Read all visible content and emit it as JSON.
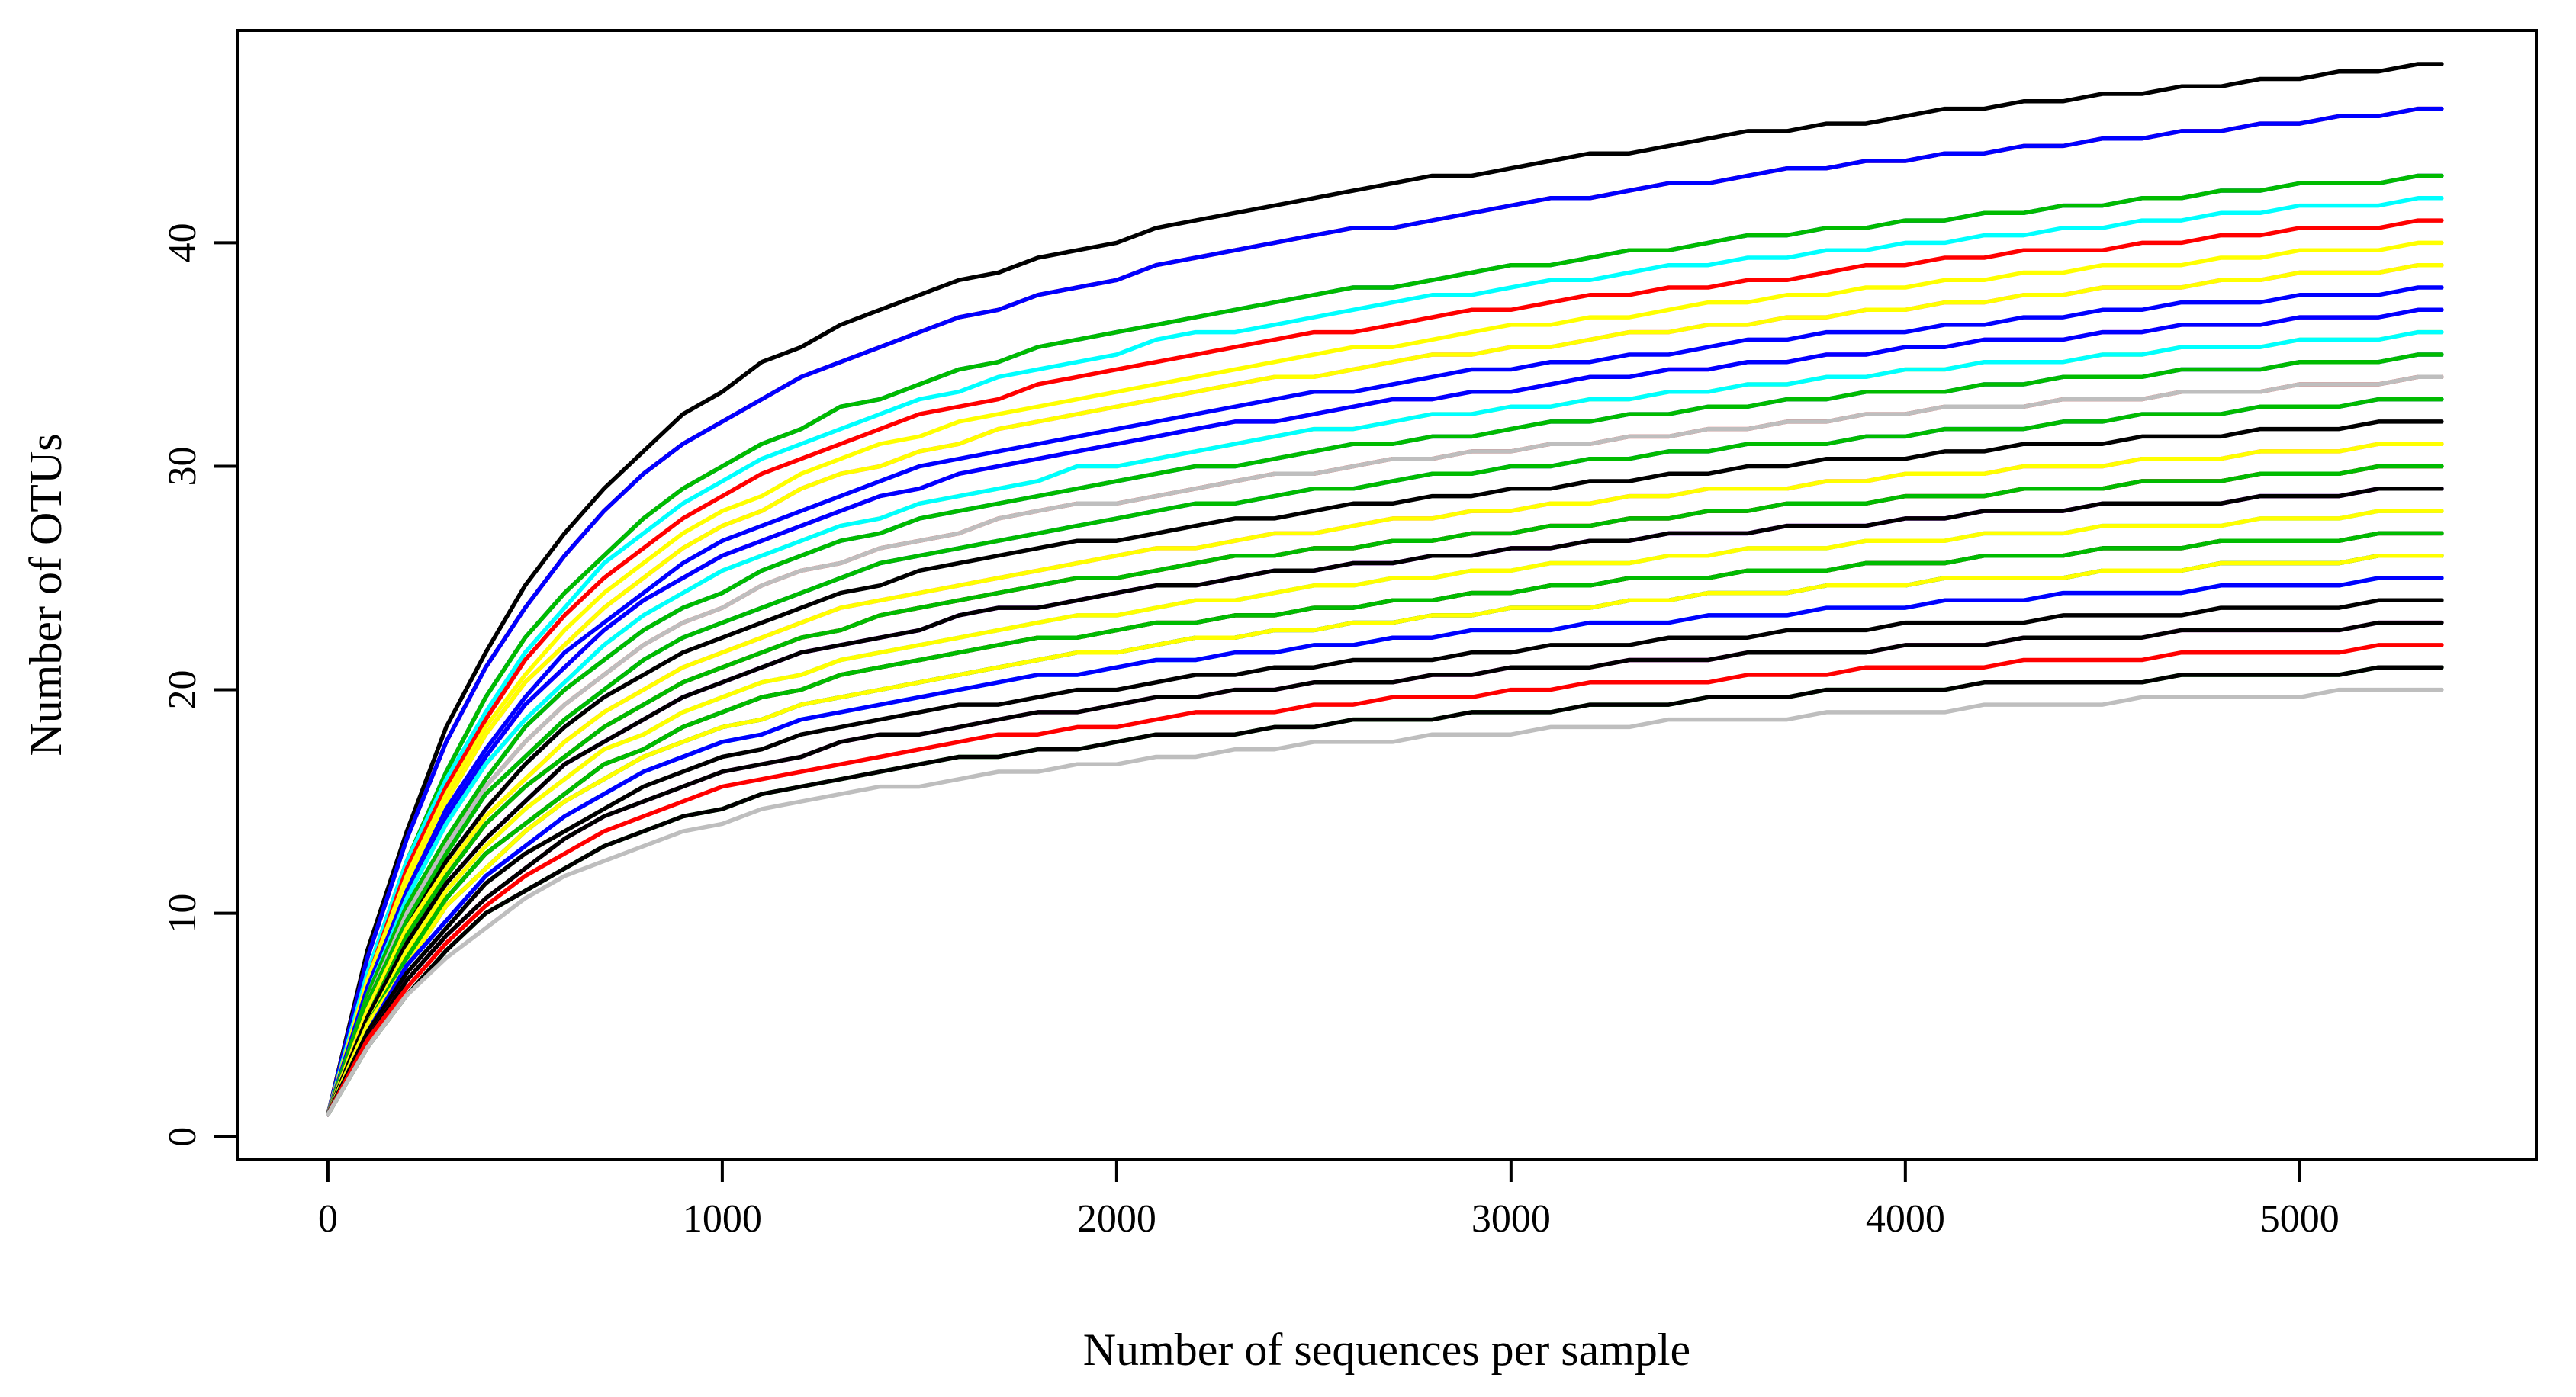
{
  "chart_data": {
    "type": "line",
    "title": "",
    "xlabel": "Number of sequences per sample",
    "ylabel": "Number of OTUs",
    "xlim": [
      -230,
      5600
    ],
    "ylim": [
      -1,
      49.5
    ],
    "x_ticks": [
      0,
      1000,
      2000,
      3000,
      4000,
      5000
    ],
    "y_ticks": [
      0,
      10,
      20,
      30,
      40
    ],
    "grid": false,
    "legend": "none",
    "x_max": 5360,
    "series": [
      {
        "color": "#000000",
        "final": 48.0
      },
      {
        "color": "#ff0000",
        "final": 46.0
      },
      {
        "color": "#0000ff",
        "final": 46.0
      },
      {
        "color": "#0000ff",
        "final": 43.0
      },
      {
        "color": "#00bb00",
        "final": 43.0
      },
      {
        "color": "#00ffff",
        "final": 42.0
      },
      {
        "color": "#ff0000",
        "final": 41.0
      },
      {
        "color": "#ffff00",
        "final": 40.0
      },
      {
        "color": "#ff00ff",
        "final": 39.0
      },
      {
        "color": "#ffff00",
        "final": 39.0
      },
      {
        "color": "#0000ff",
        "final": 38.0
      },
      {
        "color": "#ff00ff",
        "final": 37.0
      },
      {
        "color": "#0000ff",
        "final": 37.0
      },
      {
        "color": "#ffff00",
        "final": 36.0
      },
      {
        "color": "#00ffff",
        "final": 36.0
      },
      {
        "color": "#0000ff",
        "final": 35.0
      },
      {
        "color": "#00bb00",
        "final": 35.0
      },
      {
        "color": "#ff0000",
        "final": 34.0
      },
      {
        "color": "#bebebe",
        "final": 34.0
      },
      {
        "color": "#0000ff",
        "final": 33.0
      },
      {
        "color": "#00bb00",
        "final": 33.0
      },
      {
        "color": "#000000",
        "final": 32.0
      },
      {
        "color": "#ff00ff",
        "final": 31.0
      },
      {
        "color": "#ffff00",
        "final": 31.0
      },
      {
        "color": "#000000",
        "final": 30.0
      },
      {
        "color": "#ff0000",
        "final": 30.0
      },
      {
        "color": "#00bb00",
        "final": 30.0
      },
      {
        "color": "#0000ff",
        "final": 29.0
      },
      {
        "color": "#ff00ff",
        "final": 29.0
      },
      {
        "color": "#000000",
        "final": 29.0
      },
      {
        "color": "#00ffff",
        "final": 28.0
      },
      {
        "color": "#bebebe",
        "final": 28.0
      },
      {
        "color": "#ffff00",
        "final": 28.0
      },
      {
        "color": "#ff0000",
        "final": 27.0
      },
      {
        "color": "#000000",
        "final": 27.0
      },
      {
        "color": "#00bb00",
        "final": 27.0
      },
      {
        "color": "#0000ff",
        "final": 26.0
      },
      {
        "color": "#00bb00",
        "final": 26.0
      },
      {
        "color": "#ffff00",
        "final": 26.0
      },
      {
        "color": "#00ffff",
        "final": 25.0
      },
      {
        "color": "#0000ff",
        "final": 25.0
      },
      {
        "color": "#000000",
        "final": 24.0
      },
      {
        "color": "#ff00ff",
        "final": 23.0
      },
      {
        "color": "#000000",
        "final": 23.0
      },
      {
        "color": "#ff0000",
        "final": 22.0
      },
      {
        "color": "#00bb00",
        "final": 21.0
      },
      {
        "color": "#000000",
        "final": 21.0
      },
      {
        "color": "#bebebe",
        "final": 20.0
      }
    ]
  }
}
